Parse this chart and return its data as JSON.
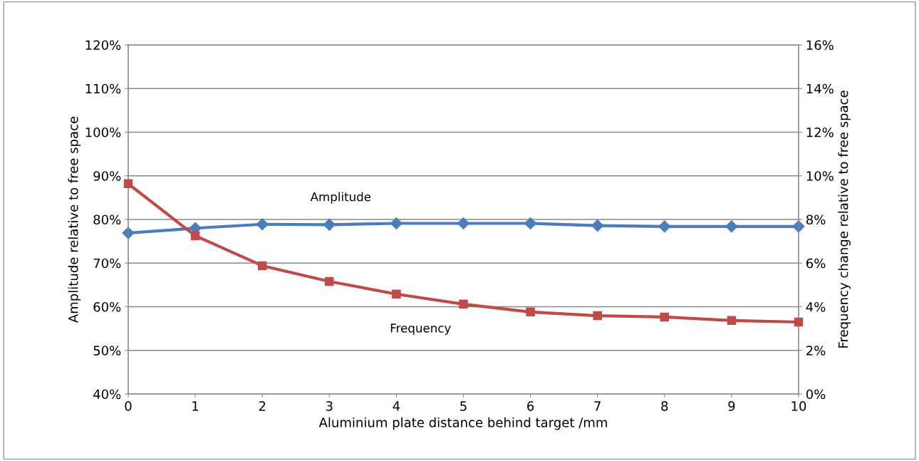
{
  "chart_data": {
    "type": "line",
    "xlabel": "Aluminium plate distance behind target /mm",
    "ylabel": "Amplitude relative to free space",
    "y2label": "Frequency change relative to free space",
    "x": [
      0,
      1,
      2,
      3,
      4,
      5,
      6,
      7,
      8,
      9,
      10
    ],
    "xlim": [
      0,
      10
    ],
    "xticks": [
      0,
      1,
      2,
      3,
      4,
      5,
      6,
      7,
      8,
      9,
      10
    ],
    "ylim": [
      40,
      120
    ],
    "yticks": [
      {
        "value": 40,
        "label": "40%"
      },
      {
        "value": 50,
        "label": "50%"
      },
      {
        "value": 60,
        "label": "60%"
      },
      {
        "value": 70,
        "label": "70%"
      },
      {
        "value": 80,
        "label": "80%"
      },
      {
        "value": 90,
        "label": "90%"
      },
      {
        "value": 100,
        "label": "100%"
      },
      {
        "value": 110,
        "label": "110%"
      },
      {
        "value": 120,
        "label": "120%"
      }
    ],
    "y2lim": [
      0,
      16
    ],
    "y2ticks": [
      {
        "value": 0,
        "label": "0%"
      },
      {
        "value": 2,
        "label": "2%"
      },
      {
        "value": 4,
        "label": "4%"
      },
      {
        "value": 6,
        "label": "6%"
      },
      {
        "value": 8,
        "label": "8%"
      },
      {
        "value": 10,
        "label": "10%"
      },
      {
        "value": 12,
        "label": "12%"
      },
      {
        "value": 14,
        "label": "14%"
      },
      {
        "value": 16,
        "label": "16%"
      }
    ],
    "grid": "y",
    "series": [
      {
        "color": "#4a7ebb",
        "marker": "diamond",
        "values": [
          76.9,
          78.0,
          78.9,
          78.8,
          79.1,
          79.1,
          79.1,
          78.6,
          78.4,
          78.4,
          78.4
        ]
      },
      {
        "color": "#be4b48",
        "marker": "square",
        "axis": "y2",
        "values": [
          9.64,
          7.25,
          5.88,
          5.16,
          4.58,
          4.12,
          3.76,
          3.59,
          3.53,
          3.37,
          3.3
        ]
      }
    ],
    "annotations": [
      "Amplitude",
      "Frequency"
    ]
  }
}
